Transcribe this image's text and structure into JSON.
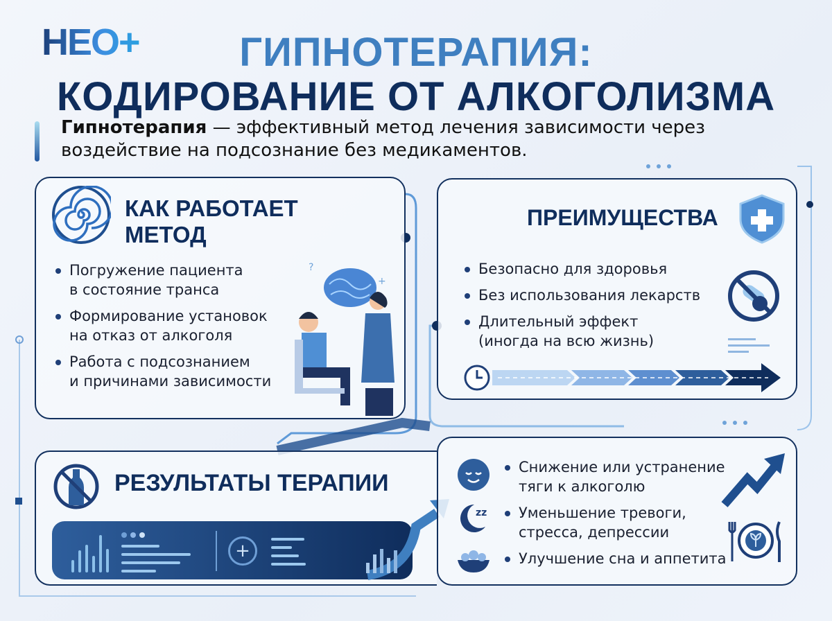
{
  "logo": {
    "text": "НЕО+"
  },
  "title": {
    "line1": "ГИПНОТЕРАПИЯ:",
    "line2": "КОДИРОВАНИЕ ОТ АЛКОГОЛИЗМА"
  },
  "intro": {
    "bold": "Гипнотерапия",
    "line1": " — эффективный метод лечения зависимости через",
    "line2": "воздействие на подсознание без медикаментов."
  },
  "how": {
    "title_line1": "КАК РАБОТАЕТ",
    "title_line2": "МЕТОД",
    "icon": "spiral-icon",
    "items": [
      {
        "l1": "Погружение пациента",
        "l2": "в состояние транса"
      },
      {
        "l1": "Формирование установок",
        "l2": "на отказ от алкоголя"
      },
      {
        "l1": "Работа с подсознанием",
        "l2": "и причинами зависимости"
      }
    ]
  },
  "advantages": {
    "title": "ПРЕИМУЩЕСТВА",
    "icon": "shield-plus-icon",
    "items": [
      {
        "l1": "Безопасно для здоровья",
        "l2": ""
      },
      {
        "l1": "Без использования лекарств",
        "l2": ""
      },
      {
        "l1": "Длительный эффект",
        "l2": "(иногда на всю жизнь)"
      }
    ]
  },
  "results": {
    "title": "РЕЗУЛЬТАТЫ ТЕРАПИИ",
    "icon": "no-alcohol-icon",
    "items": [
      {
        "icon": "calm-face-icon",
        "l1": "Снижение или устранение",
        "l2": "тяги к алкоголю"
      },
      {
        "icon": "moon-sleep-icon",
        "l1": "Уменьшение тревоги,",
        "l2": "стресса, депрессии"
      },
      {
        "icon": "food-bowl-icon",
        "l1": "Улучшение сна и аппетита",
        "l2": ""
      }
    ]
  },
  "colors": {
    "navy": "#0f2d5c",
    "accent": "#3f7fc0"
  }
}
